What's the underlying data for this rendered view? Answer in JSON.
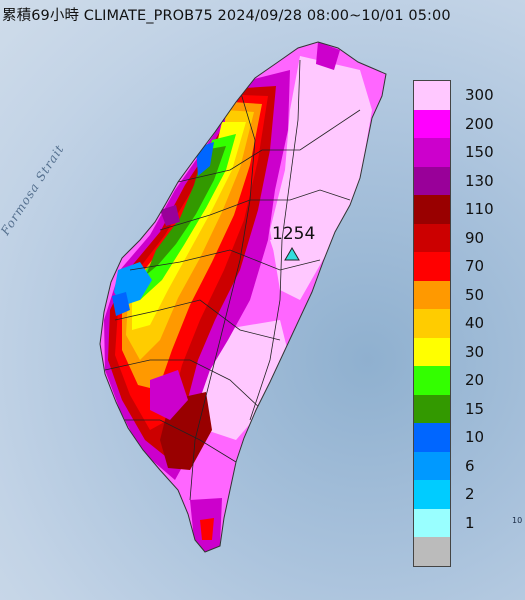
{
  "title": "累積69小時 CLIMATE_PROB75 2024/09/28 08:00~10/01 05:00",
  "sea_label": "Formosa Strait",
  "max_station_value": "1254",
  "corner_mark": "10",
  "legend": {
    "levels": [
      {
        "label": "300",
        "color": "#FFC8FF"
      },
      {
        "label": "200",
        "color": "#FF00FF"
      },
      {
        "label": "150",
        "color": "#CC00CC"
      },
      {
        "label": "130",
        "color": "#990099"
      },
      {
        "label": "110",
        "color": "#990000"
      },
      {
        "label": "90",
        "color": "#CC0000"
      },
      {
        "label": "70",
        "color": "#FF0000"
      },
      {
        "label": "50",
        "color": "#FF9900"
      },
      {
        "label": "40",
        "color": "#FFCC00"
      },
      {
        "label": "30",
        "color": "#FFFF00"
      },
      {
        "label": "20",
        "color": "#33FF00"
      },
      {
        "label": "15",
        "color": "#339900"
      },
      {
        "label": "10",
        "color": "#0066FF"
      },
      {
        "label": "6",
        "color": "#0099FF"
      },
      {
        "label": "2",
        "color": "#00CCFF"
      },
      {
        "label": "1",
        "color": "#99FFFF"
      },
      {
        "label": "",
        "color": "#BBBBBB"
      }
    ]
  }
}
